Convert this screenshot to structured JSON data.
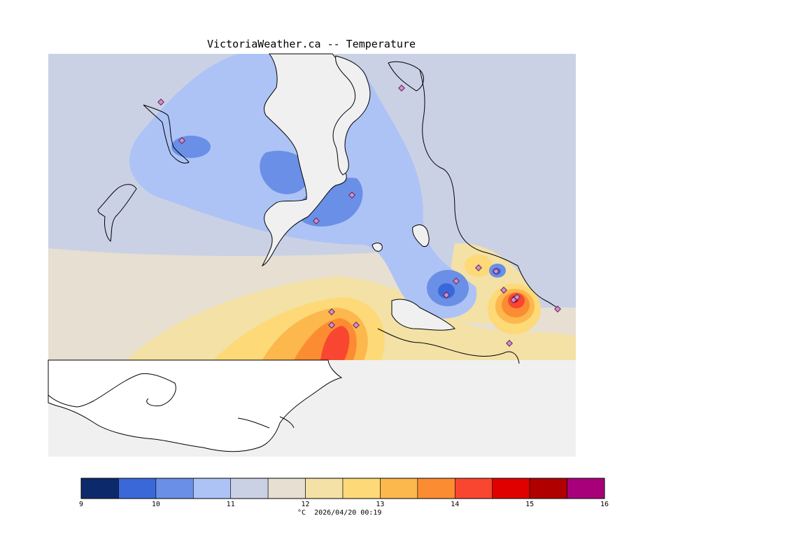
{
  "title": "VictoriaWeather.ca -- Temperature",
  "variable": "Temperature",
  "unit": "°C",
  "timestamp": "2026/04/20 00:19",
  "footer_text": "°C  2026/04/20 00:19",
  "colorbar": {
    "ticks": [
      "9",
      "10",
      "11",
      "12",
      "13",
      "14",
      "15",
      "16"
    ],
    "tick_values": [
      9,
      10,
      11,
      12,
      13,
      14,
      15,
      16
    ],
    "bins": [
      {
        "from": 9.0,
        "to": 9.5,
        "color": "#0c2a6b"
      },
      {
        "from": 9.5,
        "to": 10.0,
        "color": "#3a68d8"
      },
      {
        "from": 10.0,
        "to": 10.5,
        "color": "#6a8fe6"
      },
      {
        "from": 10.5,
        "to": 11.0,
        "color": "#adc3f6"
      },
      {
        "from": 11.0,
        "to": 11.5,
        "color": "#cbd1e5"
      },
      {
        "from": 11.5,
        "to": 12.0,
        "color": "#e6dfd2"
      },
      {
        "from": 12.0,
        "to": 12.5,
        "color": "#f3e1a6"
      },
      {
        "from": 12.5,
        "to": 13.0,
        "color": "#fdd978"
      },
      {
        "from": 13.0,
        "to": 13.5,
        "color": "#fcb74d"
      },
      {
        "from": 13.5,
        "to": 14.0,
        "color": "#fc8c32"
      },
      {
        "from": 14.0,
        "to": 14.5,
        "color": "#f94631"
      },
      {
        "from": 14.5,
        "to": 15.0,
        "color": "#e00000"
      },
      {
        "from": 15.0,
        "to": 15.5,
        "color": "#b00000"
      },
      {
        "from": 15.5,
        "to": 16.0,
        "color": "#a8007a"
      }
    ]
  },
  "colors": {
    "land_background": "#cbd1e5",
    "water": "#f0f0f0",
    "coastline": "#000000",
    "station_fill": "#d98cc8",
    "station_stroke": "#5a2a5a"
  },
  "station_count": 17
}
